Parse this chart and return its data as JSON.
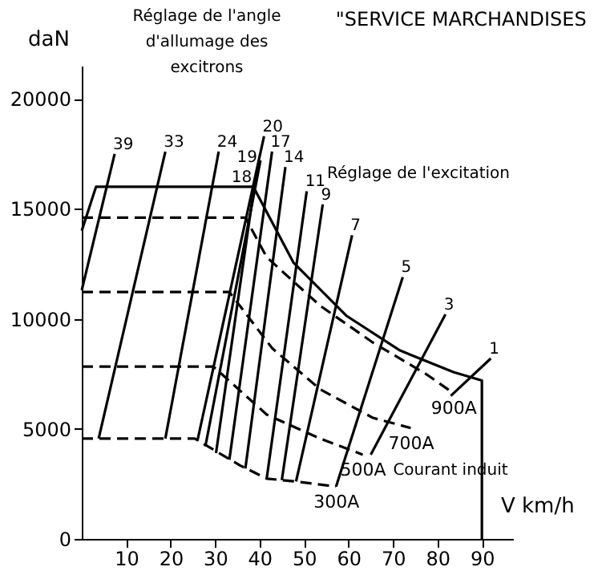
{
  "chart_data": {
    "type": "line",
    "title": "\"SERVICE MARCHANDISES",
    "xlabel": "V km/h",
    "ylabel": "daN",
    "xlim": [
      0,
      97
    ],
    "xticks": [
      10,
      20,
      30,
      40,
      50,
      60,
      70,
      80,
      90
    ],
    "ylim": [
      0,
      21500
    ],
    "yticks": [
      0,
      5000,
      10000,
      15000,
      20000
    ],
    "grid": false,
    "marker": "none",
    "annotations": [
      "Réglage de l'angle\nd'allumage des\nexcitrons",
      "Réglage de l'excitation",
      "Courant induit"
    ],
    "series": [
      {
        "color": "#000000",
        "line_style": "solid",
        "x": [
          0,
          3.2,
          38.6,
          47.6,
          59.6,
          71.6,
          83.6,
          90,
          90
        ],
        "values": [
          14000,
          16000,
          16000,
          12560,
          10130,
          8560,
          7580,
          7200,
          0
        ]
      },
      {
        "name": "900A",
        "color": "#000000",
        "line_style": "dashed",
        "x": [
          0,
          36.8,
          41.6,
          53.6,
          65.5,
          77.6,
          83.6
        ],
        "values": [
          14600,
          14600,
          12800,
          10600,
          8920,
          7470,
          6620
        ]
      },
      {
        "name": "700A",
        "color": "#000000",
        "line_style": "dashed",
        "x": [
          0,
          33.2,
          42.8,
          53.6,
          65.5,
          74
        ],
        "values": [
          11220,
          11220,
          8670,
          6800,
          5500,
          5040
        ]
      },
      {
        "name": "500A",
        "color": "#000000",
        "line_style": "dashed",
        "x": [
          0,
          29.6,
          41.6,
          53.6,
          63.2
        ],
        "values": [
          7830,
          7830,
          5650,
          4560,
          3830
        ]
      },
      {
        "name": "300A",
        "color": "#000000",
        "line_style": "dashed",
        "x": [
          0,
          25.4,
          35.6,
          41.6,
          47.6,
          57.2
        ],
        "values": [
          4560,
          4560,
          3340,
          2740,
          2620,
          2380
        ]
      },
      {
        "name": "39",
        "color": "#000000",
        "line_style": "solid",
        "x": [
          0,
          7.4
        ],
        "values": [
          11300,
          17500
        ]
      },
      {
        "name": "33",
        "color": "#000000",
        "line_style": "solid",
        "x": [
          3.8,
          18.8
        ],
        "values": [
          4560,
          17600
        ]
      },
      {
        "name": "24",
        "color": "#000000",
        "line_style": "solid",
        "x": [
          18.8,
          30.8
        ],
        "values": [
          4560,
          17600
        ]
      },
      {
        "name": "20",
        "color": "#000000",
        "line_style": "solid",
        "x": [
          26,
          41
        ],
        "values": [
          4450,
          18300
        ]
      },
      {
        "name": "19",
        "color": "#000000",
        "line_style": "solid",
        "x": [
          27.8,
          40.2
        ],
        "values": [
          4200,
          17200
        ]
      },
      {
        "name": "18",
        "color": "#000000",
        "line_style": "solid",
        "x": [
          30.2,
          39
        ],
        "values": [
          3900,
          16300
        ]
      },
      {
        "name": "17",
        "color": "#000000",
        "line_style": "solid",
        "x": [
          33.2,
          42.8
        ],
        "values": [
          3600,
          17600
        ]
      },
      {
        "name": "14",
        "color": "#000000",
        "line_style": "solid",
        "x": [
          36.8,
          45.8
        ],
        "values": [
          3200,
          16900
        ]
      },
      {
        "name": "11",
        "color": "#000000",
        "line_style": "solid",
        "x": [
          41.6,
          50.6
        ],
        "values": [
          2740,
          15800
        ]
      },
      {
        "name": "9",
        "color": "#000000",
        "line_style": "solid",
        "x": [
          45,
          54.2
        ],
        "values": [
          2670,
          15200
        ]
      },
      {
        "name": "7",
        "color": "#000000",
        "line_style": "solid",
        "x": [
          48.2,
          60.8
        ],
        "values": [
          2610,
          13800
        ]
      },
      {
        "name": "5",
        "color": "#000000",
        "line_style": "solid",
        "x": [
          57.2,
          72.2
        ],
        "values": [
          2380,
          11900
        ]
      },
      {
        "name": "3",
        "color": "#000000",
        "line_style": "solid",
        "x": [
          65,
          81.8
        ],
        "values": [
          3830,
          10200
        ]
      },
      {
        "name": "1",
        "color": "#000000",
        "line_style": "solid",
        "x": [
          83,
          92
        ],
        "values": [
          6500,
          8200
        ]
      }
    ]
  }
}
